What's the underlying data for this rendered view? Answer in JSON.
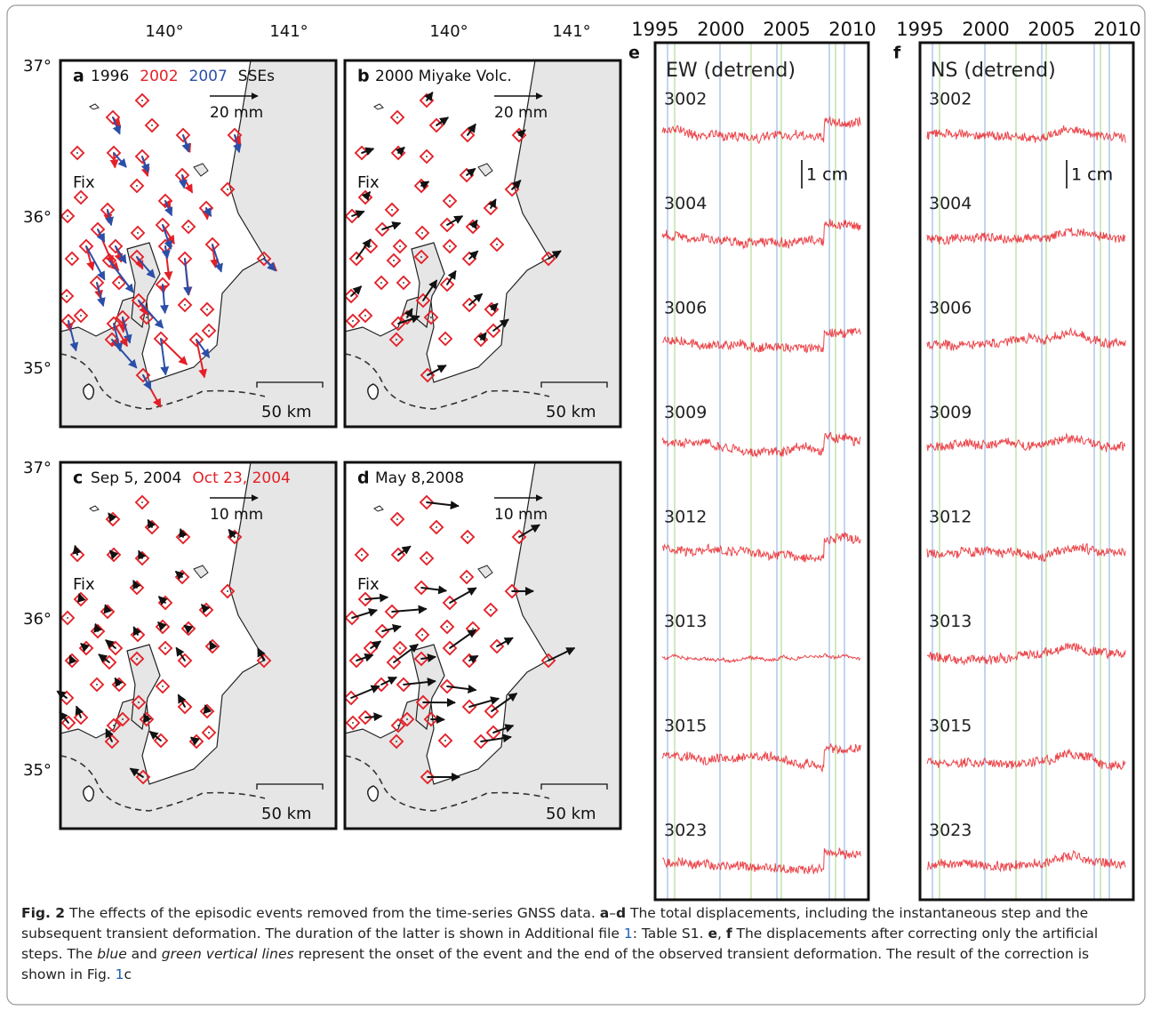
{
  "longitude_labels": [
    [
      "140°",
      "141°"
    ],
    [
      "140°",
      "141°"
    ]
  ],
  "latitude_labels": [
    [
      "37°",
      "36°",
      "35°"
    ],
    [
      "37°",
      "36°",
      "35°"
    ]
  ],
  "panels": [
    {
      "letter": "a",
      "title": [
        {
          "text": "1996",
          "color": "#111111"
        },
        {
          "text": "2002",
          "color": "#e32027"
        },
        {
          "text": "2007",
          "color": "#2b4fa8"
        },
        {
          "text": "SSEs",
          "color": "#111111"
        }
      ],
      "arrow_scale": "20 mm",
      "fix": "Fix",
      "distance": "50 km"
    },
    {
      "letter": "b",
      "title": [
        {
          "text": "2000 Miyake Volc.",
          "color": "#111111"
        }
      ],
      "arrow_scale": "20 mm",
      "fix": "Fix",
      "distance": "50 km"
    },
    {
      "letter": "c",
      "title": [
        {
          "text": "Sep 5, 2004",
          "color": "#111111"
        },
        {
          "text": "Oct 23, 2004",
          "color": "#e32027"
        }
      ],
      "arrow_scale": "10 mm",
      "fix": "Fix",
      "distance": "50 km"
    },
    {
      "letter": "d",
      "title": [
        {
          "text": "May 8,2008",
          "color": "#111111"
        }
      ],
      "arrow_scale": "10 mm",
      "fix": "Fix",
      "distance": "50 km"
    }
  ],
  "time_series": [
    {
      "letter": "e",
      "title": "EW (detrend)",
      "years": [
        1995,
        2000,
        2005,
        2010
      ],
      "stations": [
        "3002",
        "3004",
        "3006",
        "3009",
        "3012",
        "3013",
        "3015",
        "3023"
      ],
      "scale": "1 cm"
    },
    {
      "letter": "f",
      "title": "NS (detrend)",
      "years": [
        1995,
        2000,
        2005,
        2010
      ],
      "stations": [
        "3002",
        "3004",
        "3006",
        "3009",
        "3012",
        "3013",
        "3015",
        "3023"
      ],
      "scale": "1 cm"
    }
  ],
  "caption": {
    "label": "Fig. 2",
    "parts": [
      {
        "t": " The effects of the episodic events removed from the time-series GNSS data. "
      },
      {
        "b": "a"
      },
      {
        "t": "–"
      },
      {
        "b": "d"
      },
      {
        "t": " The total displacements, including the instantaneous step and the subsequent transient deformation. The duration of the latter is shown in Additional file "
      },
      {
        "a": "1"
      },
      {
        "t": ": Table S1. "
      },
      {
        "b": "e"
      },
      {
        "t": ", "
      },
      {
        "b": "f"
      },
      {
        "t": " The displacements after correcting only the artificial steps. The "
      },
      {
        "i": "blue"
      },
      {
        "t": " and "
      },
      {
        "i": "green vertical lines"
      },
      {
        "t": " represent the onset of the event and the end of the observed transient deformation. The result of the correction is shown in Fig. "
      },
      {
        "a": "1"
      },
      {
        "t": "c"
      }
    ]
  }
}
